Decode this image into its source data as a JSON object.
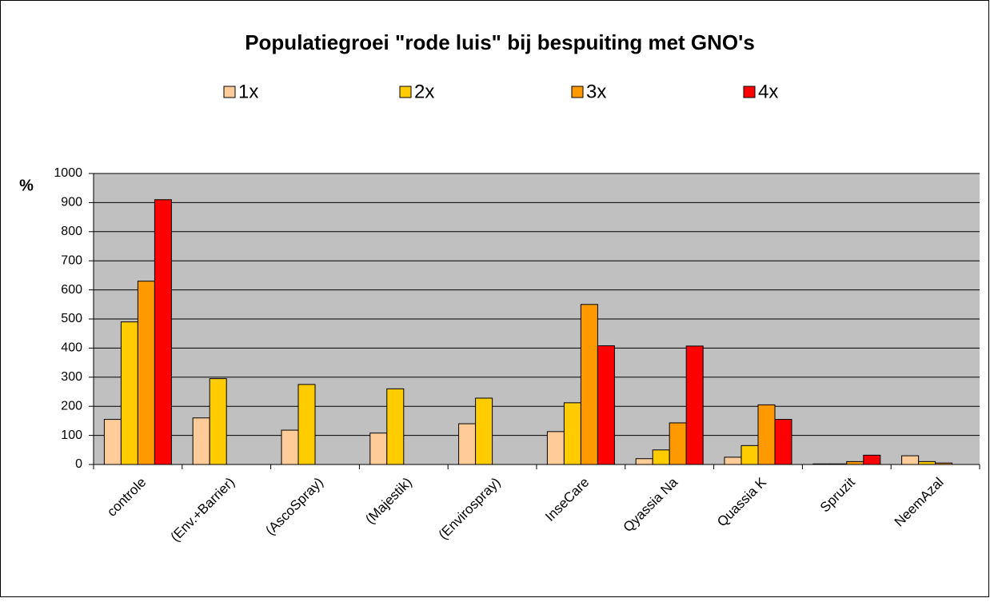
{
  "chart_data": {
    "type": "bar",
    "title": "Populatiegroei \"rode luis\" bij bespuiting met GNO's",
    "y_label": "%",
    "categories": [
      "controle",
      "(Env.+Barrier)",
      "(AscoSpray)",
      "(Majestik)",
      "(Envirospray)",
      "InseCare",
      "Qyassia Na",
      "Quassia K",
      "Spruzit",
      "NeemAzal"
    ],
    "series": [
      {
        "name": "1x",
        "color": "#ffcc99",
        "values": [
          155,
          160,
          118,
          108,
          140,
          113,
          20,
          25,
          2,
          30
        ]
      },
      {
        "name": "2x",
        "color": "#ffcc00",
        "values": [
          490,
          295,
          275,
          260,
          228,
          212,
          50,
          65,
          2,
          10
        ]
      },
      {
        "name": "3x",
        "color": "#ff9900",
        "values": [
          630,
          null,
          null,
          null,
          null,
          550,
          143,
          205,
          10,
          5
        ]
      },
      {
        "name": "4x",
        "color": "#ff0000",
        "values": [
          910,
          null,
          null,
          null,
          null,
          408,
          407,
          155,
          32,
          null
        ]
      }
    ],
    "ylim": [
      0,
      1000
    ],
    "yticks": [
      0,
      100,
      200,
      300,
      400,
      500,
      600,
      700,
      800,
      900,
      1000
    ],
    "grid": true,
    "plot_background": "#c0c0c0",
    "legend": "top"
  }
}
